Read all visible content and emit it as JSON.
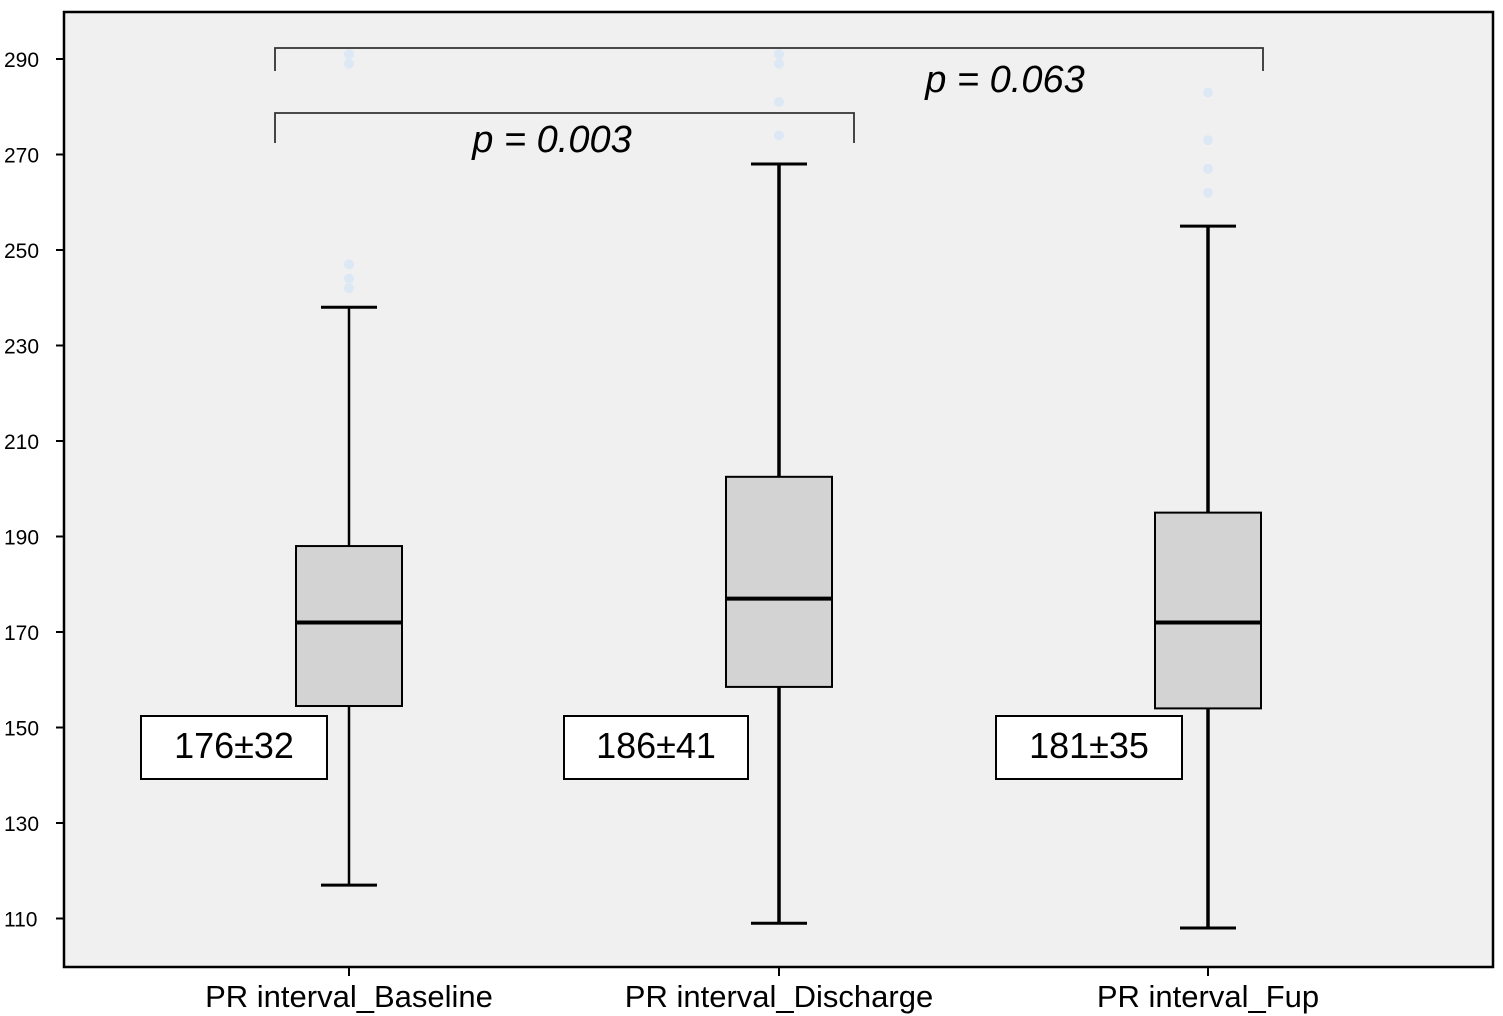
{
  "chart_data": {
    "type": "boxplot",
    "title": "",
    "xlabel": "",
    "ylabel": "",
    "ylim": [
      100,
      300
    ],
    "yticks": [
      110,
      130,
      150,
      170,
      190,
      210,
      230,
      250,
      270,
      290
    ],
    "grid": false,
    "colors": {
      "plot_bg": "#f0f0f0",
      "box_fill": "#d3d3d3",
      "stroke": "#000000",
      "outlier": "#dde8f5"
    },
    "categories": [
      "PR interval_Baseline",
      "PR interval_Discharge",
      "PR interval_Fup"
    ],
    "boxes": [
      {
        "category": "PR interval_Baseline",
        "whisker_low": 117,
        "q1": 154.5,
        "median": 172,
        "q3": 188,
        "whisker_high": 238,
        "outliers": [
          242,
          244,
          247,
          289,
          291
        ],
        "stat_label": "176±32"
      },
      {
        "category": "PR interval_Discharge",
        "whisker_low": 109,
        "q1": 158.5,
        "median": 177,
        "q3": 202.5,
        "whisker_high": 268,
        "outliers": [
          274,
          281,
          289,
          291
        ],
        "stat_label": "186±41"
      },
      {
        "category": "PR interval_Fup",
        "whisker_low": 108,
        "q1": 154,
        "median": 172,
        "q3": 195,
        "whisker_high": 255,
        "outliers": [
          262,
          267,
          273,
          283
        ],
        "stat_label": "181±35"
      }
    ],
    "annotations": [
      {
        "text": "p = 0.003",
        "from": "PR interval_Baseline",
        "to": "PR interval_Discharge"
      },
      {
        "text": "p = 0.063",
        "from": "PR interval_Baseline",
        "to": "PR interval_Fup"
      }
    ]
  }
}
